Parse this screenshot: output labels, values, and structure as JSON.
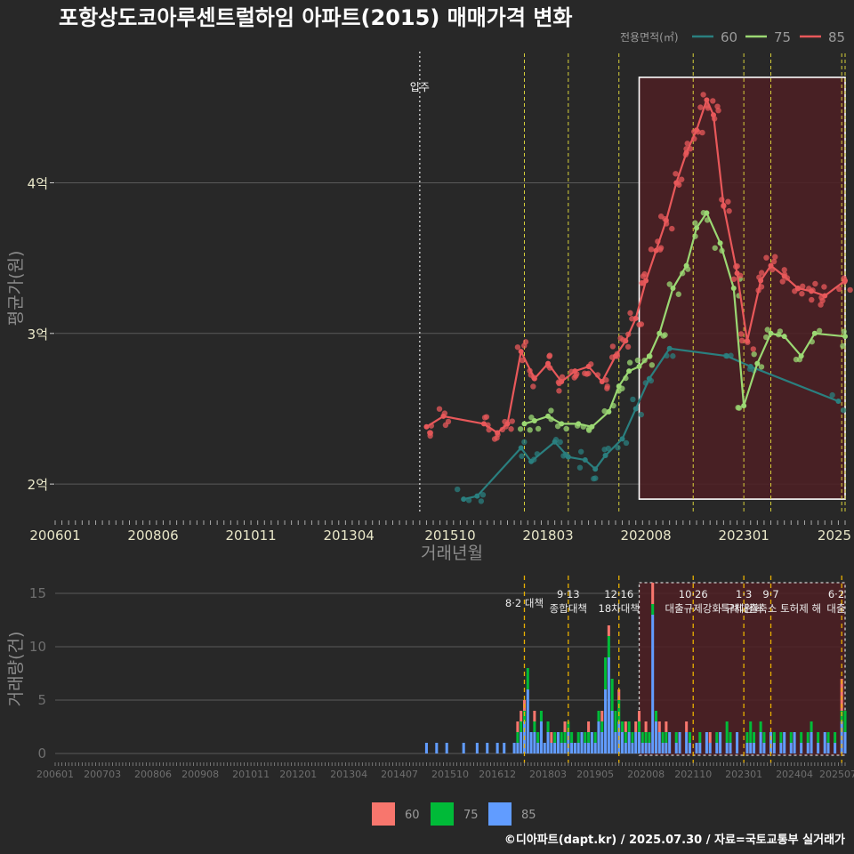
{
  "colors": {
    "bg": "#282828",
    "s60_line": "#2a7f7f",
    "s75_line": "#9bd873",
    "s85_line": "#e8585a",
    "bar60": "#f8766d",
    "bar75": "#00ba38",
    "bar85": "#619cff",
    "policy_line": "#e8b000",
    "grid": "#5a5a5a",
    "highlight_fill": "#4e1f23"
  },
  "chart_data": [
    {
      "type": "line",
      "title": "포항상도코아루센트럴하임 아파트(2015) 매매가격 변화",
      "xlabel": "거래년월",
      "ylabel": "평균가(원)",
      "x_range": [
        "2006-01",
        "2025-07"
      ],
      "ylim": [
        18000,
        48000
      ],
      "y_ticks": [
        {
          "value": 20000,
          "label": "2억"
        },
        {
          "value": 30000,
          "label": "3억"
        },
        {
          "value": 40000,
          "label": "4억"
        }
      ],
      "x_ticks": [
        "200601",
        "200806",
        "201011",
        "201304",
        "201510",
        "201803",
        "202008",
        "202301",
        "2025"
      ],
      "legend_title": "전용면적(㎡)",
      "legend": [
        "60",
        "75",
        "85"
      ],
      "annotation": {
        "label": "입주",
        "x": "2015-01"
      },
      "policy_dates": [
        "2017-08",
        "2018-09",
        "2019-12",
        "2021-10",
        "2023-01",
        "2023-09",
        "2025-06",
        "2025-07"
      ],
      "highlight": {
        "x_start": "2020-06",
        "x_end": "2025-07",
        "y_start": 19000,
        "y_end": 47000
      },
      "series": [
        {
          "name": "60",
          "points": [
            [
              "2016-02",
              19000
            ],
            [
              "2016-06",
              19200
            ],
            [
              "2017-07",
              22400
            ],
            [
              "2017-10",
              21500
            ],
            [
              "2018-05",
              22800
            ],
            [
              "2018-09",
              21800
            ],
            [
              "2019-02",
              21600
            ],
            [
              "2019-05",
              21000
            ],
            [
              "2019-08",
              21900
            ],
            [
              "2020-01",
              23000
            ],
            [
              "2020-05",
              25000
            ],
            [
              "2020-09",
              27000
            ],
            [
              "2021-03",
              29000
            ],
            [
              "2022-08",
              28500
            ],
            [
              "2023-03",
              27800
            ],
            [
              "2025-05",
              25500
            ]
          ]
        },
        {
          "name": "75",
          "points": [
            [
              "2017-08",
              24000
            ],
            [
              "2017-11",
              24200
            ],
            [
              "2018-03",
              24500
            ],
            [
              "2018-07",
              24000
            ],
            [
              "2018-12",
              24000
            ],
            [
              "2019-04",
              23800
            ],
            [
              "2019-09",
              24800
            ],
            [
              "2019-12",
              26500
            ],
            [
              "2020-03",
              27500
            ],
            [
              "2020-06",
              27800
            ],
            [
              "2020-09",
              28500
            ],
            [
              "2020-12",
              30000
            ],
            [
              "2021-04",
              33000
            ],
            [
              "2021-08",
              34500
            ],
            [
              "2021-11",
              37000
            ],
            [
              "2022-02",
              38000
            ],
            [
              "2022-06",
              36000
            ],
            [
              "2022-10",
              33000
            ],
            [
              "2023-01",
              25200
            ],
            [
              "2023-05",
              28000
            ],
            [
              "2023-09",
              30000
            ],
            [
              "2024-01",
              29800
            ],
            [
              "2024-06",
              28500
            ],
            [
              "2024-10",
              30000
            ],
            [
              "2025-07",
              29800
            ]
          ]
        },
        {
          "name": "85",
          "points": [
            [
              "2015-03",
              23800
            ],
            [
              "2015-08",
              24500
            ],
            [
              "2016-08",
              24000
            ],
            [
              "2016-12",
              23400
            ],
            [
              "2017-03",
              24000
            ],
            [
              "2017-07",
              28800
            ],
            [
              "2017-11",
              27000
            ],
            [
              "2018-03",
              28000
            ],
            [
              "2018-07",
              26800
            ],
            [
              "2018-11",
              27500
            ],
            [
              "2019-03",
              27800
            ],
            [
              "2019-07",
              26800
            ],
            [
              "2019-11",
              28500
            ],
            [
              "2020-02",
              29500
            ],
            [
              "2020-05",
              31000
            ],
            [
              "2020-08",
              33500
            ],
            [
              "2020-11",
              35500
            ],
            [
              "2021-02",
              37500
            ],
            [
              "2021-05",
              40000
            ],
            [
              "2021-08",
              42000
            ],
            [
              "2021-11",
              43500
            ],
            [
              "2022-02",
              45500
            ],
            [
              "2022-04",
              44500
            ],
            [
              "2022-07",
              38500
            ],
            [
              "2022-11",
              34000
            ],
            [
              "2023-02",
              29500
            ],
            [
              "2023-06",
              33500
            ],
            [
              "2023-09",
              34500
            ],
            [
              "2024-01",
              33800
            ],
            [
              "2024-05",
              33000
            ],
            [
              "2024-09",
              32800
            ],
            [
              "2025-01",
              32500
            ],
            [
              "2025-07",
              33500
            ]
          ]
        }
      ]
    },
    {
      "type": "bar",
      "stacked": true,
      "ylabel": "거래량(건)",
      "ylim": [
        0,
        16
      ],
      "y_ticks": [
        0,
        5,
        10,
        15
      ],
      "x_ticks": [
        "200601",
        "200703",
        "200806",
        "200908",
        "201011",
        "201201",
        "201304",
        "201407",
        "201510",
        "201612",
        "201803",
        "201905",
        "202008",
        "202110",
        "202301",
        "202404",
        "202507"
      ],
      "legend": [
        "60",
        "75",
        "85"
      ],
      "policies": [
        {
          "date": "2017-08",
          "lines": [
            "8·2 대책"
          ]
        },
        {
          "date": "2018-09",
          "lines": [
            "9·13",
            "종합대책"
          ]
        },
        {
          "date": "2019-12",
          "lines": [
            "12·16",
            "18차대책"
          ]
        },
        {
          "date": "2021-10",
          "lines": [
            "10·26",
            "대출규제강화"
          ]
        },
        {
          "date": "2023-01",
          "lines": [
            "1·3",
            "규제완화"
          ]
        },
        {
          "date": "2023-09",
          "lines": [
            "9·7",
            "특례대출축소 토허제 해"
          ]
        },
        {
          "date": "2025-06",
          "lines": [
            "6·2",
            "대출"
          ]
        }
      ],
      "volumes": [
        [
          "2015-03",
          0,
          0,
          1
        ],
        [
          "2015-06",
          0,
          0,
          1
        ],
        [
          "2015-09",
          0,
          0,
          1
        ],
        [
          "2016-02",
          0,
          0,
          1
        ],
        [
          "2016-06",
          0,
          0,
          1
        ],
        [
          "2016-09",
          0,
          0,
          1
        ],
        [
          "2016-12",
          0,
          0,
          1
        ],
        [
          "2017-02",
          0,
          0,
          1
        ],
        [
          "2017-05",
          0,
          0,
          1
        ],
        [
          "2017-06",
          1,
          1,
          1
        ],
        [
          "2017-07",
          1,
          1,
          2
        ],
        [
          "2017-08",
          1,
          1,
          3
        ],
        [
          "2017-09",
          0,
          2,
          6
        ],
        [
          "2017-10",
          0,
          0,
          2
        ],
        [
          "2017-11",
          1,
          1,
          2
        ],
        [
          "2017-12",
          0,
          1,
          1
        ],
        [
          "2018-01",
          0,
          1,
          3
        ],
        [
          "2018-02",
          0,
          0,
          1
        ],
        [
          "2018-03",
          0,
          1,
          2
        ],
        [
          "2018-04",
          1,
          0,
          1
        ],
        [
          "2018-05",
          0,
          1,
          1
        ],
        [
          "2018-06",
          0,
          0,
          2
        ],
        [
          "2018-07",
          0,
          1,
          1
        ],
        [
          "2018-08",
          1,
          1,
          1
        ],
        [
          "2018-09",
          0,
          1,
          2
        ],
        [
          "2018-10",
          0,
          1,
          1
        ],
        [
          "2018-11",
          0,
          0,
          1
        ],
        [
          "2018-12",
          0,
          1,
          1
        ],
        [
          "2019-01",
          0,
          0,
          2
        ],
        [
          "2019-02",
          0,
          1,
          1
        ],
        [
          "2019-03",
          1,
          1,
          1
        ],
        [
          "2019-04",
          0,
          0,
          2
        ],
        [
          "2019-05",
          0,
          1,
          1
        ],
        [
          "2019-06",
          0,
          1,
          3
        ],
        [
          "2019-07",
          1,
          1,
          2
        ],
        [
          "2019-08",
          0,
          3,
          6
        ],
        [
          "2019-09",
          1,
          2,
          9
        ],
        [
          "2019-10",
          0,
          3,
          4
        ],
        [
          "2019-11",
          0,
          2,
          2
        ],
        [
          "2019-12",
          1,
          2,
          3
        ],
        [
          "2020-01",
          0,
          1,
          2
        ],
        [
          "2020-02",
          1,
          1,
          1
        ],
        [
          "2020-03",
          0,
          1,
          2
        ],
        [
          "2020-04",
          0,
          1,
          1
        ],
        [
          "2020-05",
          1,
          0,
          2
        ],
        [
          "2020-06",
          1,
          1,
          2
        ],
        [
          "2020-07",
          0,
          1,
          1
        ],
        [
          "2020-08",
          1,
          1,
          1
        ],
        [
          "2020-09",
          0,
          1,
          1
        ],
        [
          "2020-10",
          2,
          1,
          13
        ],
        [
          "2020-11",
          0,
          1,
          3
        ],
        [
          "2020-12",
          1,
          0,
          2
        ],
        [
          "2021-01",
          0,
          1,
          1
        ],
        [
          "2021-02",
          1,
          1,
          1
        ],
        [
          "2021-03",
          0,
          0,
          2
        ],
        [
          "2021-05",
          0,
          1,
          1
        ],
        [
          "2021-06",
          0,
          0,
          2
        ],
        [
          "2021-08",
          1,
          0,
          2
        ],
        [
          "2021-09",
          0,
          1,
          1
        ],
        [
          "2021-11",
          0,
          0,
          1
        ],
        [
          "2021-12",
          0,
          1,
          1
        ],
        [
          "2022-02",
          0,
          0,
          2
        ],
        [
          "2022-03",
          1,
          0,
          1
        ],
        [
          "2022-05",
          0,
          1,
          1
        ],
        [
          "2022-06",
          0,
          0,
          2
        ],
        [
          "2022-08",
          0,
          2,
          1
        ],
        [
          "2022-09",
          0,
          1,
          1
        ],
        [
          "2022-11",
          0,
          0,
          2
        ],
        [
          "2023-02",
          0,
          1,
          1
        ],
        [
          "2023-03",
          0,
          2,
          1
        ],
        [
          "2023-04",
          0,
          1,
          1
        ],
        [
          "2023-06",
          0,
          1,
          2
        ],
        [
          "2023-07",
          0,
          1,
          1
        ],
        [
          "2023-09",
          0,
          0,
          2
        ],
        [
          "2023-10",
          0,
          1,
          1
        ],
        [
          "2023-12",
          0,
          1,
          1
        ],
        [
          "2024-01",
          0,
          0,
          2
        ],
        [
          "2024-03",
          0,
          1,
          1
        ],
        [
          "2024-04",
          0,
          0,
          2
        ],
        [
          "2024-06",
          0,
          1,
          1
        ],
        [
          "2024-08",
          0,
          1,
          1
        ],
        [
          "2024-09",
          0,
          1,
          2
        ],
        [
          "2024-11",
          0,
          1,
          1
        ],
        [
          "2025-01",
          0,
          0,
          2
        ],
        [
          "2025-02",
          0,
          1,
          1
        ],
        [
          "2025-04",
          0,
          1,
          1
        ],
        [
          "2025-06",
          3,
          1,
          3
        ],
        [
          "2025-07",
          0,
          2,
          2
        ]
      ]
    }
  ],
  "bottom_legend": [
    "60",
    "75",
    "85"
  ],
  "footer": "©디아파트(dapt.kr) / 2025.07.30 / 자료=국토교통부 실거래가"
}
